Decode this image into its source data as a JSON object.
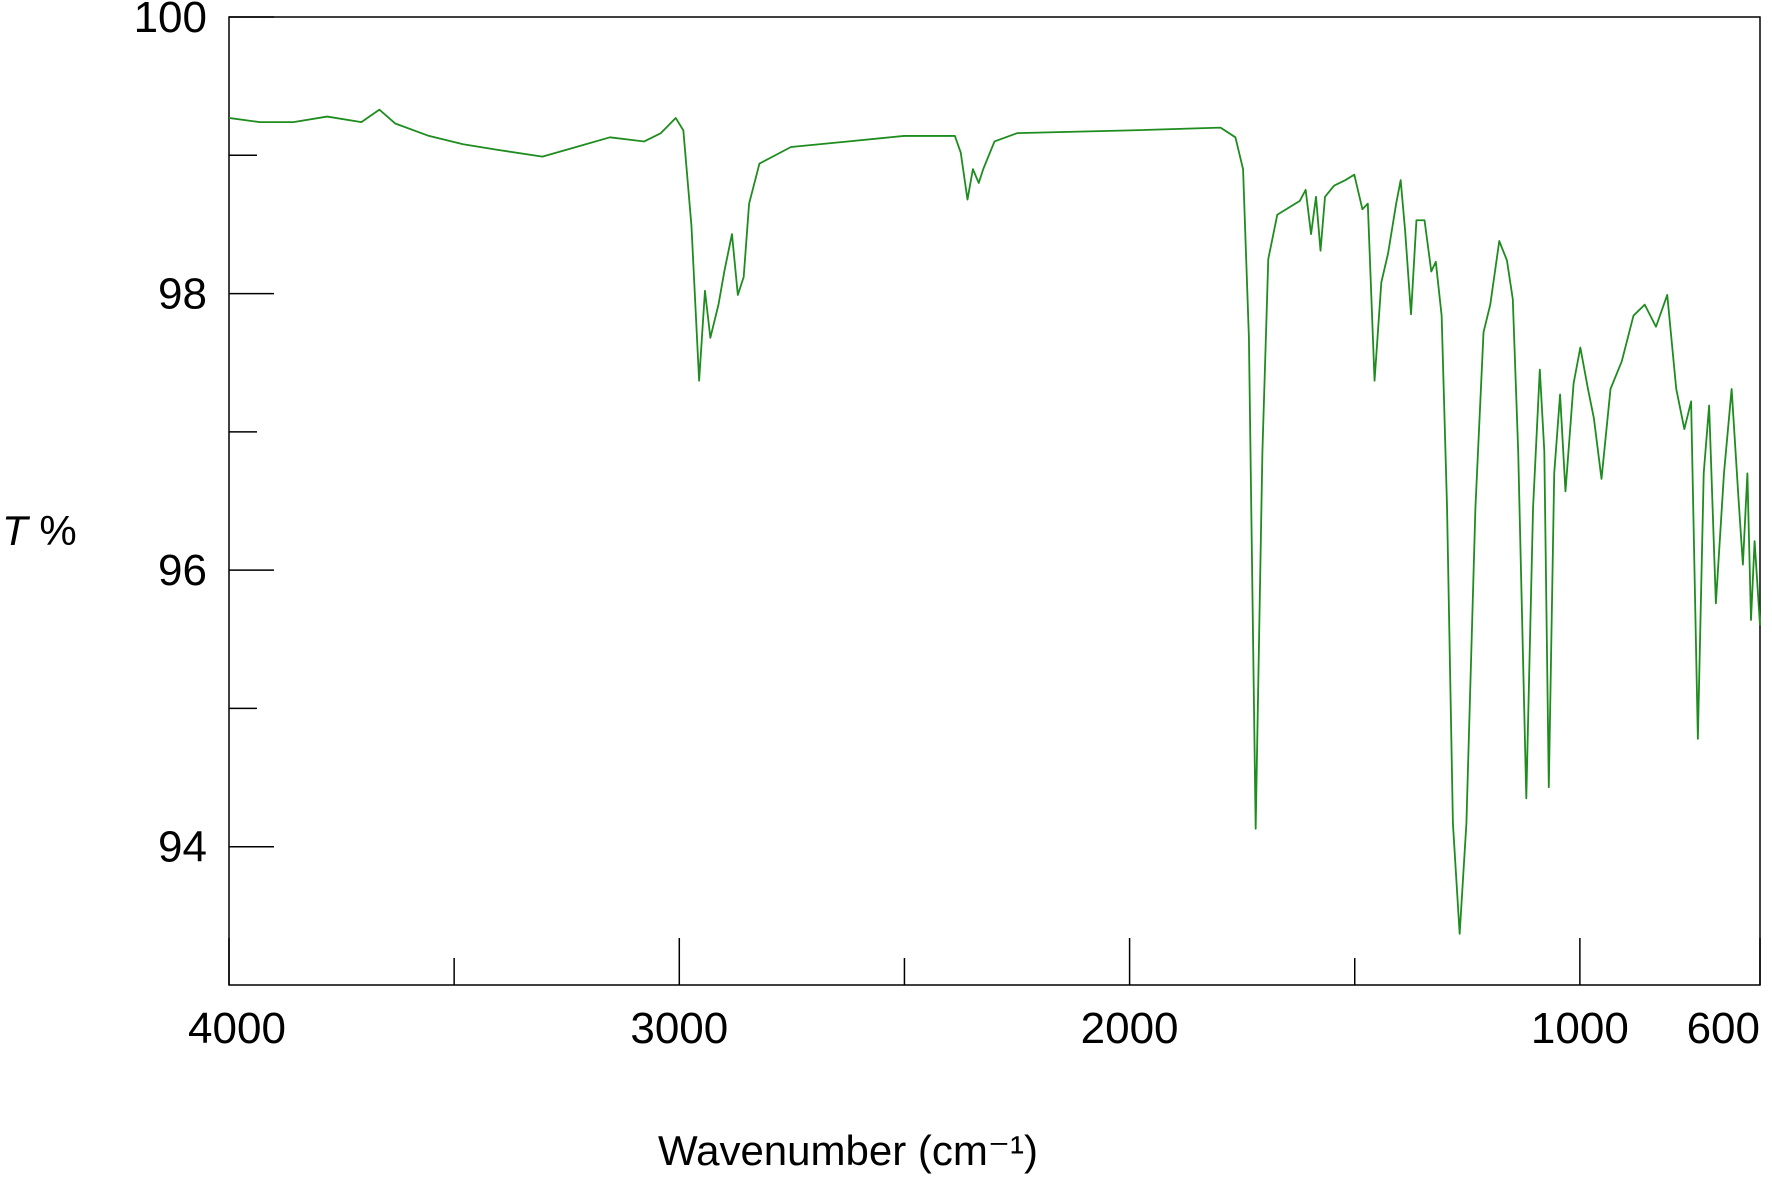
{
  "chart_data": {
    "type": "line",
    "x_label": "Wavenumber (cm⁻¹)",
    "y_label": "T %",
    "color": "#1e8c1e",
    "x": [
      4000,
      3932,
      3857,
      3782,
      3706,
      3666,
      3631,
      3556,
      3480,
      3405,
      3304,
      3229,
      3154,
      3078,
      3041,
      3008,
      2991,
      2973,
      2956,
      2943,
      2931,
      2913,
      2900,
      2883,
      2870,
      2857,
      2845,
      2822,
      2752,
      2626,
      2501,
      2388,
      2375,
      2360,
      2348,
      2335,
      2325,
      2300,
      2250,
      1999,
      1798,
      1765,
      1748,
      1735,
      1720,
      1705,
      1692,
      1672,
      1622,
      1609,
      1597,
      1586,
      1576,
      1566,
      1546,
      1521,
      1501,
      1483,
      1471,
      1456,
      1441,
      1426,
      1408,
      1398,
      1388,
      1375,
      1363,
      1345,
      1330,
      1320,
      1307,
      1295,
      1282,
      1267,
      1252,
      1232,
      1214,
      1199,
      1179,
      1162,
      1149,
      1137,
      1119,
      1104,
      1089,
      1079,
      1069,
      1057,
      1044,
      1032,
      1014,
      999,
      982,
      969,
      952,
      932,
      907,
      881,
      856,
      831,
      806,
      786,
      768,
      753,
      738,
      725,
      713,
      698,
      680,
      663,
      648,
      638,
      628,
      620,
      612,
      600
    ],
    "values": [
      99.27,
      99.24,
      99.24,
      99.28,
      99.24,
      99.33,
      99.23,
      99.14,
      99.08,
      99.04,
      98.99,
      99.06,
      99.13,
      99.1,
      99.16,
      99.27,
      99.18,
      98.49,
      97.37,
      98.02,
      97.68,
      97.92,
      98.16,
      98.43,
      97.99,
      98.12,
      98.65,
      98.94,
      99.06,
      99.1,
      99.14,
      99.14,
      99.02,
      98.68,
      98.9,
      98.8,
      98.9,
      99.1,
      99.16,
      99.18,
      99.2,
      99.13,
      98.9,
      97.68,
      94.13,
      96.86,
      98.25,
      98.57,
      98.67,
      98.75,
      98.43,
      98.7,
      98.31,
      98.7,
      98.78,
      98.82,
      98.86,
      98.61,
      98.65,
      97.37,
      98.08,
      98.29,
      98.65,
      98.82,
      98.45,
      97.85,
      98.53,
      98.53,
      98.16,
      98.23,
      97.84,
      96.45,
      94.17,
      93.37,
      94.17,
      96.45,
      97.72,
      97.92,
      98.38,
      98.24,
      97.96,
      96.86,
      94.35,
      96.45,
      97.45,
      96.86,
      94.43,
      96.7,
      97.27,
      96.57,
      97.35,
      97.61,
      97.31,
      97.1,
      96.66,
      97.31,
      97.51,
      97.84,
      97.92,
      97.76,
      97.99,
      97.31,
      97.02,
      97.22,
      94.78,
      96.7,
      97.19,
      95.76,
      96.7,
      97.31,
      96.53,
      96.04,
      96.7,
      95.64,
      96.21,
      95.6
    ],
    "xlim": [
      4000,
      600
    ],
    "xticks": [
      4000,
      3000,
      2000,
      1000,
      600
    ],
    "xminorticks": [
      3500,
      2500,
      1500
    ],
    "ylim": [
      93,
      100
    ],
    "yticks": [
      94,
      96,
      98,
      100
    ],
    "yminorticks": [
      95,
      97,
      99
    ]
  }
}
